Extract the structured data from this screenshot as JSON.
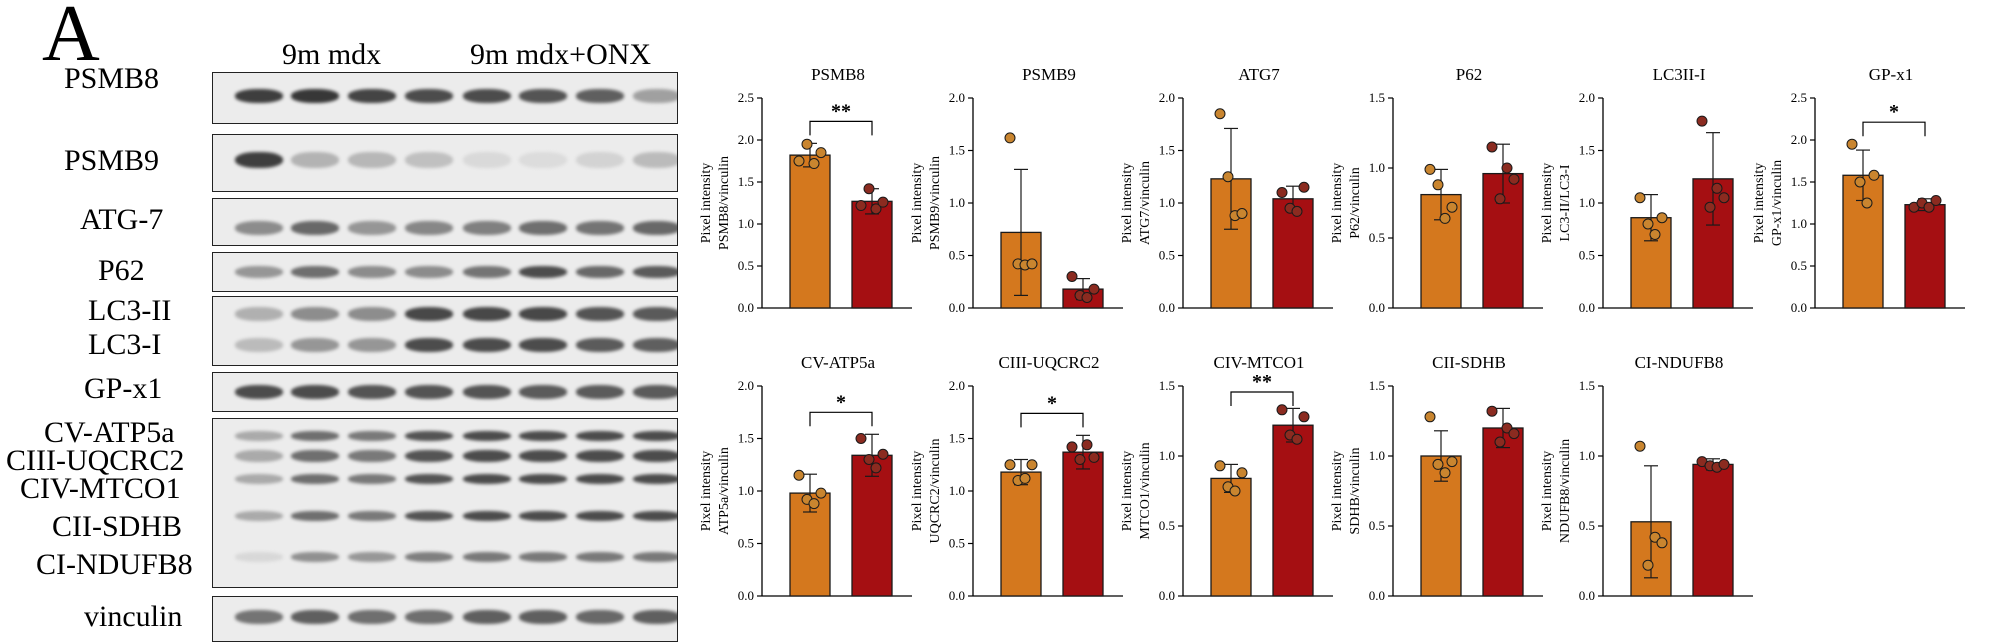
{
  "panel_letter": "A",
  "groups": [
    {
      "label": "9m mdx"
    },
    {
      "label": "9m mdx+ONX"
    }
  ],
  "blots": [
    {
      "labels": [
        "PSMB8"
      ],
      "intensities": [
        0.9,
        0.92,
        0.88,
        0.85,
        0.85,
        0.82,
        0.78,
        0.5
      ]
    },
    {
      "labels": [
        "PSMB9"
      ],
      "intensities": [
        0.9,
        0.4,
        0.38,
        0.32,
        0.12,
        0.1,
        0.18,
        0.35
      ]
    },
    {
      "labels": [
        "ATG-7"
      ],
      "intensities": [
        0.6,
        0.75,
        0.55,
        0.62,
        0.65,
        0.72,
        0.7,
        0.75
      ]
    },
    {
      "labels": [
        "P62"
      ],
      "intensities": [
        0.55,
        0.72,
        0.6,
        0.6,
        0.7,
        0.85,
        0.75,
        0.8
      ]
    },
    {
      "labels": [
        "LC3-II",
        "LC3-I"
      ],
      "intensities": [
        0.35,
        0.55,
        0.55,
        0.85,
        0.85,
        0.85,
        0.8,
        0.78
      ]
    },
    {
      "labels": [
        "GP-x1"
      ],
      "intensities": [
        0.85,
        0.85,
        0.82,
        0.82,
        0.82,
        0.8,
        0.8,
        0.8
      ]
    },
    {
      "labels": [
        "CV-ATP5a",
        "CIII-UQCRC2",
        "CIV-MTCO1",
        "CII-SDHB",
        "CI-NDUFB8"
      ],
      "intensities": [
        0.45,
        0.72,
        0.68,
        0.82,
        0.85,
        0.85,
        0.85,
        0.85
      ]
    },
    {
      "labels": [
        "vinculin"
      ],
      "intensities": [
        0.7,
        0.78,
        0.72,
        0.72,
        0.78,
        0.78,
        0.75,
        0.78
      ]
    }
  ],
  "colors": {
    "group1": "#d4781e",
    "group2": "#a50f12",
    "point1": "#c9852f",
    "point2": "#8b2b20"
  },
  "chart_data": [
    {
      "type": "bar",
      "title": "PSMB8",
      "ylabel": [
        "Pixel intensity",
        "PSMB8/vinculin"
      ],
      "ylim": [
        0,
        2.5
      ],
      "yticks": [
        "0.0",
        "0.5",
        "1.0",
        "1.5",
        "2.0",
        "2.5"
      ],
      "values": [
        1.82,
        1.27
      ],
      "errors": [
        0.14,
        0.15
      ],
      "points": [
        [
          1.75,
          1.95,
          1.72,
          1.85
        ],
        [
          1.22,
          1.42,
          1.18,
          1.26
        ]
      ],
      "sig": "**"
    },
    {
      "type": "bar",
      "title": "PSMB9",
      "ylabel": [
        "Pixel intensity",
        "PSMB9/vinculin"
      ],
      "ylim": [
        0,
        2.0
      ],
      "yticks": [
        "0.0",
        "0.5",
        "1.0",
        "1.5",
        "2.0"
      ],
      "values": [
        0.72,
        0.18
      ],
      "errors": [
        0.6,
        0.1
      ],
      "points": [
        [
          1.62,
          0.42,
          0.41,
          0.42
        ],
        [
          0.3,
          0.12,
          0.1,
          0.18
        ]
      ],
      "sig": ""
    },
    {
      "type": "bar",
      "title": "ATG7",
      "ylabel": [
        "Pixel intensity",
        "ATG7/vinculin"
      ],
      "ylim": [
        0,
        2.0
      ],
      "yticks": [
        "0.0",
        "0.5",
        "1.0",
        "1.5",
        "2.0"
      ],
      "values": [
        1.23,
        1.04
      ],
      "errors": [
        0.48,
        0.12
      ],
      "points": [
        [
          1.85,
          1.25,
          0.88,
          0.9
        ],
        [
          1.1,
          0.95,
          0.92,
          1.15
        ]
      ],
      "sig": ""
    },
    {
      "type": "bar",
      "title": "P62",
      "ylabel": [
        "Pixel intensity",
        "P62/vinculin"
      ],
      "ylim": [
        0,
        1.5
      ],
      "yticks": [
        "0.0",
        "0.5",
        "1.0",
        "1.5"
      ],
      "values": [
        0.81,
        0.96
      ],
      "errors": [
        0.18,
        0.21
      ],
      "points": [
        [
          0.99,
          0.88,
          0.64,
          0.72
        ],
        [
          1.15,
          0.78,
          1.0,
          0.92
        ]
      ],
      "sig": ""
    },
    {
      "type": "bar",
      "title": "LC3II-I",
      "ylabel": [
        "Pixel intensity",
        "LC3-II/LC3-I"
      ],
      "ylim": [
        0,
        2.0
      ],
      "yticks": [
        "0.0",
        "0.5",
        "1.0",
        "1.5",
        "2.0"
      ],
      "values": [
        0.86,
        1.23
      ],
      "errors": [
        0.22,
        0.44
      ],
      "points": [
        [
          1.05,
          0.8,
          0.7,
          0.86
        ],
        [
          1.78,
          0.96,
          1.14,
          1.05
        ]
      ],
      "sig": ""
    },
    {
      "type": "bar",
      "title": "GP-x1",
      "ylabel": [
        "Pixel intensity",
        "GP-x1/vinculin"
      ],
      "ylim": [
        0,
        2.5
      ],
      "yticks": [
        "0.0",
        "0.5",
        "1.0",
        "1.5",
        "2.0",
        "2.5"
      ],
      "values": [
        1.58,
        1.23
      ],
      "errors": [
        0.3,
        0.07
      ],
      "points": [
        [
          1.95,
          1.5,
          1.25,
          1.58
        ],
        [
          1.2,
          1.25,
          1.2,
          1.28
        ]
      ],
      "sig": "*"
    },
    {
      "type": "bar",
      "title": "CV-ATP5a",
      "ylabel": [
        "Pixel intensity",
        "ATP5a/vinculin"
      ],
      "ylim": [
        0,
        2.0
      ],
      "yticks": [
        "0.0",
        "0.5",
        "1.0",
        "1.5",
        "2.0"
      ],
      "values": [
        0.98,
        1.34
      ],
      "errors": [
        0.18,
        0.2
      ],
      "points": [
        [
          1.15,
          0.92,
          0.88,
          0.98
        ],
        [
          1.5,
          1.3,
          1.22,
          1.35
        ]
      ],
      "sig": "*"
    },
    {
      "type": "bar",
      "title": "CIII-UQCRC2",
      "ylabel": [
        "Pixel intensity",
        "UQCRC2/vinculin"
      ],
      "ylim": [
        0,
        2.0
      ],
      "yticks": [
        "0.0",
        "0.5",
        "1.0",
        "1.5",
        "2.0"
      ],
      "values": [
        1.18,
        1.37
      ],
      "errors": [
        0.12,
        0.16
      ],
      "points": [
        [
          1.25,
          1.1,
          1.12,
          1.25
        ],
        [
          1.42,
          1.3,
          1.44,
          1.32
        ]
      ],
      "sig": "*"
    },
    {
      "type": "bar",
      "title": "CIV-MTCO1",
      "ylabel": [
        "Pixel intensity",
        "MTCO1/vinculin"
      ],
      "ylim": [
        0,
        1.5
      ],
      "yticks": [
        "0.0",
        "0.5",
        "1.0",
        "1.5"
      ],
      "values": [
        0.84,
        1.22
      ],
      "errors": [
        0.1,
        0.12
      ],
      "points": [
        [
          0.93,
          0.78,
          0.75,
          0.88
        ],
        [
          1.33,
          1.15,
          1.12,
          1.28
        ]
      ],
      "sig": "**"
    },
    {
      "type": "bar",
      "title": "CII-SDHB",
      "ylabel": [
        "Pixel intensity",
        "SDHB/vinculin"
      ],
      "ylim": [
        0,
        1.5
      ],
      "yticks": [
        "0.0",
        "0.5",
        "1.0",
        "1.5"
      ],
      "values": [
        1.0,
        1.2
      ],
      "errors": [
        0.18,
        0.14
      ],
      "points": [
        [
          1.28,
          0.94,
          0.88,
          0.96
        ],
        [
          1.32,
          1.1,
          1.2,
          1.16
        ]
      ],
      "sig": ""
    },
    {
      "type": "bar",
      "title": "CI-NDUFB8",
      "ylabel": [
        "Pixel intensity",
        "NDUFB8/vinculin"
      ],
      "ylim": [
        0,
        1.5
      ],
      "yticks": [
        "0.0",
        "0.5",
        "1.0",
        "1.5"
      ],
      "values": [
        0.53,
        0.94
      ],
      "errors": [
        0.4,
        0.04
      ],
      "points": [
        [
          1.07,
          0.22,
          0.42,
          0.38
        ],
        [
          0.96,
          0.93,
          0.92,
          0.94
        ]
      ],
      "sig": ""
    }
  ]
}
